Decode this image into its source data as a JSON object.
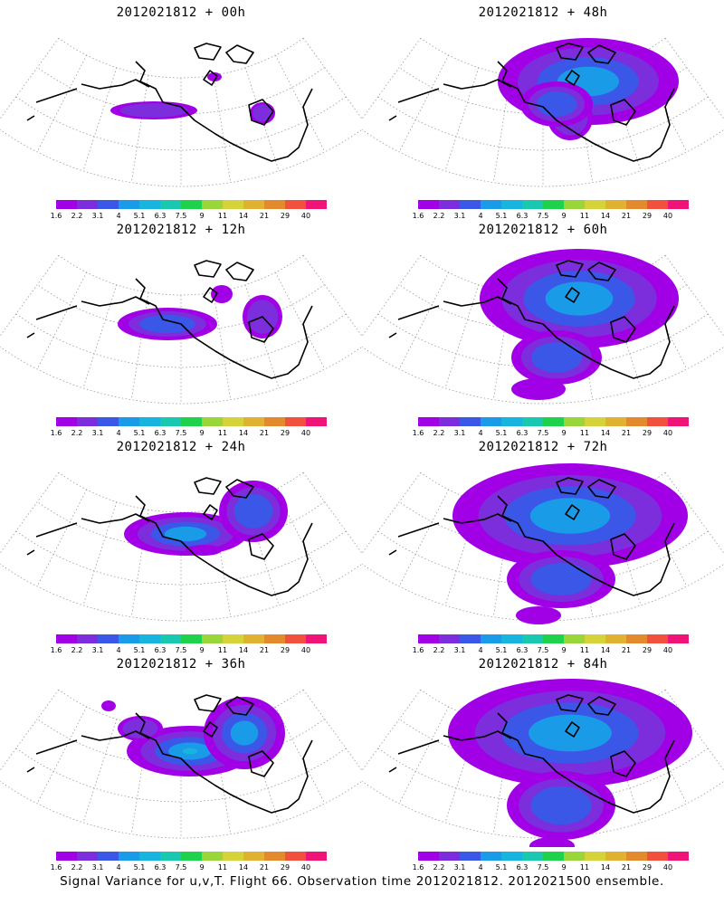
{
  "caption": "Signal Variance for u,v,T. Flight 66. Observation time 2012021812. 2012021500 ensemble.",
  "colorbar": {
    "labels": [
      "1.6",
      "2.2",
      "3.1",
      "4",
      "5.1",
      "6.3",
      "7.5",
      "9",
      "11",
      "14",
      "21",
      "29",
      "40"
    ],
    "colors": [
      "#a100e6",
      "#7c2ddc",
      "#3a57e8",
      "#1a9be8",
      "#18b4e0",
      "#19c8b0",
      "#1ed24b",
      "#9ad63a",
      "#d6d23a",
      "#e0b232",
      "#e38a2c",
      "#f0503c",
      "#f0147a"
    ]
  },
  "panels": [
    {
      "title": "2012021812 + 00h",
      "blobs": [
        {
          "cx": 170,
          "cy": 122,
          "rx": 48,
          "ry": 10,
          "level": 1
        },
        {
          "cx": 290,
          "cy": 125,
          "rx": 14,
          "ry": 12,
          "level": 1
        },
        {
          "cx": 237,
          "cy": 85,
          "rx": 8,
          "ry": 5,
          "level": 0
        }
      ]
    },
    {
      "title": "2012021812 + 12h",
      "blobs": [
        {
          "cx": 185,
          "cy": 118,
          "rx": 55,
          "ry": 18,
          "level": 2
        },
        {
          "cx": 290,
          "cy": 110,
          "rx": 22,
          "ry": 24,
          "level": 1
        },
        {
          "cx": 245,
          "cy": 85,
          "rx": 12,
          "ry": 10,
          "level": 0
        }
      ]
    },
    {
      "title": "2012021812 + 24h",
      "blobs": [
        {
          "cx": 205,
          "cy": 110,
          "rx": 68,
          "ry": 24,
          "level": 3
        },
        {
          "cx": 280,
          "cy": 85,
          "rx": 38,
          "ry": 34,
          "level": 2
        },
        {
          "cx": 225,
          "cy": 128,
          "rx": 20,
          "ry": 6,
          "level": 0
        }
      ]
    },
    {
      "title": "2012021812 + 36h",
      "blobs": [
        {
          "cx": 210,
          "cy": 110,
          "rx": 70,
          "ry": 28,
          "level": 4
        },
        {
          "cx": 270,
          "cy": 90,
          "rx": 45,
          "ry": 40,
          "level": 3
        },
        {
          "cx": 155,
          "cy": 85,
          "rx": 25,
          "ry": 14,
          "level": 1
        },
        {
          "cx": 120,
          "cy": 60,
          "rx": 8,
          "ry": 6,
          "level": 0
        }
      ]
    },
    {
      "title": "2012021812 + 48h",
      "blobs": [
        {
          "cx": 250,
          "cy": 90,
          "rx": 100,
          "ry": 48,
          "level": 3
        },
        {
          "cx": 630,
          "cy": 130,
          "rx": 25,
          "ry": 25,
          "level": 1
        },
        {
          "cx": 215,
          "cy": 115,
          "rx": 40,
          "ry": 25,
          "level": 2
        }
      ]
    },
    {
      "title": "2012021812 + 60h",
      "blobs": [
        {
          "cx": 240,
          "cy": 90,
          "rx": 110,
          "ry": 55,
          "level": 3
        },
        {
          "cx": 215,
          "cy": 155,
          "rx": 50,
          "ry": 30,
          "level": 2
        },
        {
          "cx": 195,
          "cy": 190,
          "rx": 30,
          "ry": 12,
          "level": 0
        }
      ]
    },
    {
      "title": "2012021812 + 72h",
      "blobs": [
        {
          "cx": 230,
          "cy": 90,
          "rx": 130,
          "ry": 58,
          "level": 3
        },
        {
          "cx": 220,
          "cy": 160,
          "rx": 60,
          "ry": 32,
          "level": 2
        },
        {
          "cx": 195,
          "cy": 200,
          "rx": 25,
          "ry": 10,
          "level": 0
        }
      ]
    },
    {
      "title": "2012021812 + 84h",
      "blobs": [
        {
          "cx": 230,
          "cy": 90,
          "rx": 135,
          "ry": 60,
          "level": 3
        },
        {
          "cx": 220,
          "cy": 170,
          "rx": 60,
          "ry": 38,
          "level": 2
        },
        {
          "cx": 210,
          "cy": 215,
          "rx": 25,
          "ry": 10,
          "level": 0
        }
      ]
    }
  ]
}
